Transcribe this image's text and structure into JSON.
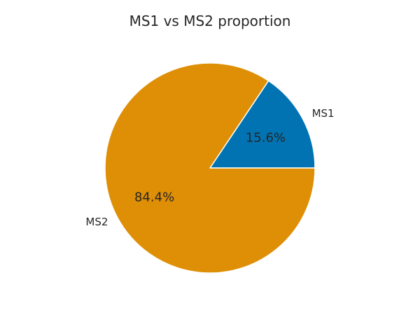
{
  "chart_data": {
    "type": "pie",
    "title": "MS1 vs MS2 proportion",
    "slices": [
      {
        "label": "MS1",
        "value": 15.6,
        "pct_label": "15.6%",
        "color": "#0173b2"
      },
      {
        "label": "MS2",
        "value": 84.4,
        "pct_label": "84.4%",
        "color": "#de8f05"
      }
    ],
    "edge_color": "#ffffff",
    "legend": "none"
  }
}
